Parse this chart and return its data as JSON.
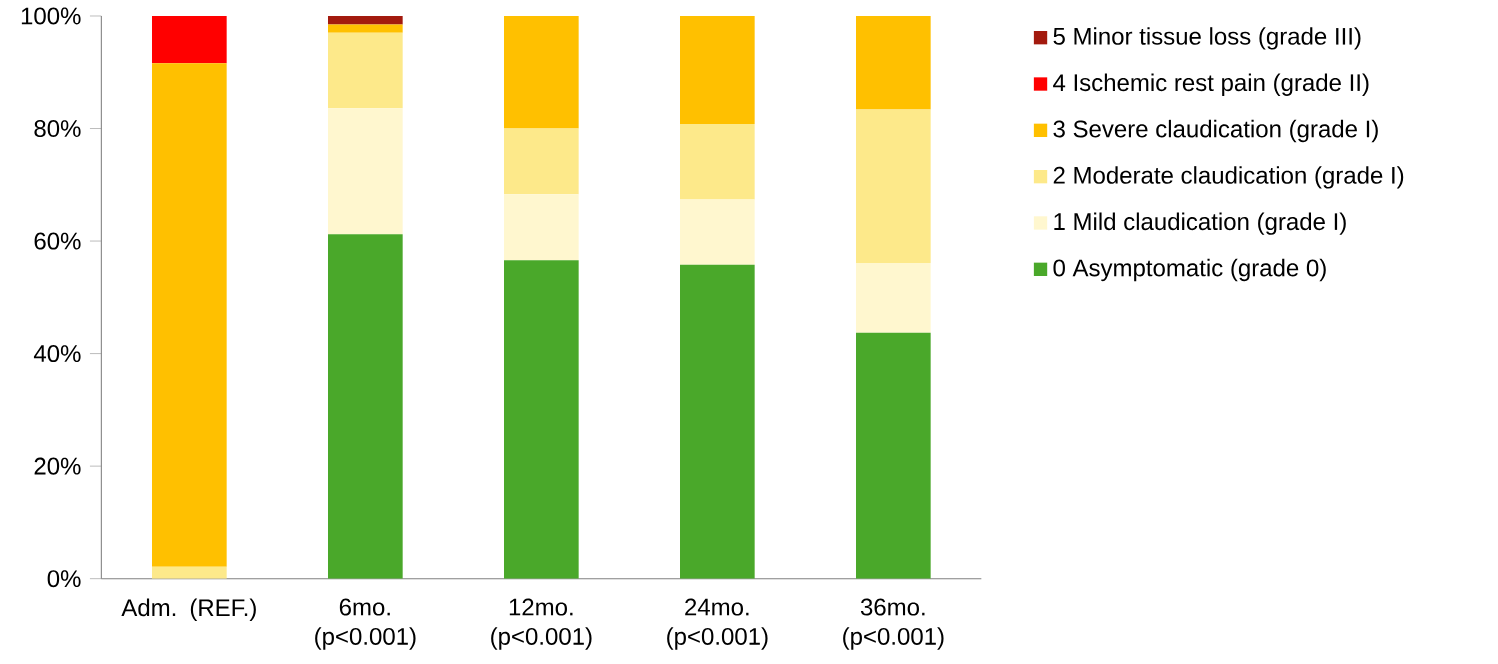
{
  "chart_data": {
    "type": "bar",
    "stacked": true,
    "categories": [
      "Adm. (REF.)",
      "6mo. (p<0.001)",
      "12mo. (p<0.001)",
      "24mo. (p<0.001)",
      "36mo. (p<0.001)"
    ],
    "series": [
      {
        "name": "0 Asymptomatic (grade 0)",
        "color": "#4aa82a",
        "values": [
          0,
          61.2,
          56.6,
          55.8,
          43.7
        ]
      },
      {
        "name": "1 Mild claudication (grade I)",
        "color": "#fff7cf",
        "values": [
          0,
          22.4,
          11.7,
          11.6,
          12.4
        ]
      },
      {
        "name": "2 Moderate claudication (grade I)",
        "color": "#fde98a",
        "values": [
          2.1,
          13.4,
          11.7,
          13.4,
          27.3
        ]
      },
      {
        "name": "3 Severe claudication (grade I)",
        "color": "#ffc000",
        "values": [
          89.5,
          1.5,
          20.0,
          19.2,
          16.6
        ]
      },
      {
        "name": "4 Ischemic rest pain (grade II)",
        "color": "#ff0000",
        "values": [
          8.4,
          0,
          0,
          0,
          0
        ]
      },
      {
        "name": "5 Minor tissue loss (grade III)",
        "color": "#a31a0e",
        "values": [
          0,
          1.5,
          0,
          0,
          0
        ]
      }
    ],
    "ylim": [
      0,
      100
    ],
    "yticks": [
      {
        "value": 0,
        "label": "0%"
      },
      {
        "value": 20,
        "label": "20%"
      },
      {
        "value": 40,
        "label": "40%"
      },
      {
        "value": 60,
        "label": "60%"
      },
      {
        "value": 80,
        "label": "80%"
      },
      {
        "value": 100,
        "label": "100%"
      }
    ],
    "grid": false,
    "legend": "right"
  }
}
